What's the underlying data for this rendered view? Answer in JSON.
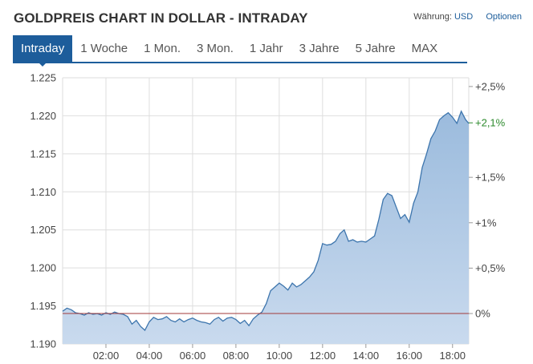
{
  "title": "GOLDPREIS CHART IN DOLLAR - INTRADAY",
  "currency": {
    "label": "Währung:",
    "value": "USD"
  },
  "options_label": "Optionen",
  "tabs": [
    {
      "label": "Intraday",
      "active": true
    },
    {
      "label": "1 Woche",
      "active": false
    },
    {
      "label": "1 Mon.",
      "active": false
    },
    {
      "label": "3 Mon.",
      "active": false
    },
    {
      "label": "1 Jahr",
      "active": false
    },
    {
      "label": "3 Jahre",
      "active": false
    },
    {
      "label": "5 Jahre",
      "active": false
    },
    {
      "label": "MAX",
      "active": false
    }
  ],
  "colors": {
    "line": "#3d75ad",
    "fill_top": "#9bbbdd",
    "fill_bottom": "#c9daee",
    "reference": "#a33a3a",
    "grid": "#dedede",
    "current_label": "#2e8b2e",
    "accent": "#1d5d9b"
  },
  "chart_data": {
    "type": "area",
    "title": "",
    "x_unit": "hours",
    "x_range": [
      0,
      18.75
    ],
    "x_ticks": [
      {
        "value": 2,
        "label": "02:00"
      },
      {
        "value": 4,
        "label": "04:00"
      },
      {
        "value": 6,
        "label": "06:00"
      },
      {
        "value": 8,
        "label": "08:00"
      },
      {
        "value": 10,
        "label": "10:00"
      },
      {
        "value": 12,
        "label": "12:00"
      },
      {
        "value": 14,
        "label": "14:00"
      },
      {
        "value": 16,
        "label": "16:00"
      },
      {
        "value": 18,
        "label": "18:00"
      }
    ],
    "y_range": [
      1190,
      1225
    ],
    "y_ticks": [
      {
        "value": 1190,
        "label": "1.190"
      },
      {
        "value": 1195,
        "label": "1.195"
      },
      {
        "value": 1200,
        "label": "1.200"
      },
      {
        "value": 1205,
        "label": "1.205"
      },
      {
        "value": 1210,
        "label": "1.210"
      },
      {
        "value": 1215,
        "label": "1.215"
      },
      {
        "value": 1220,
        "label": "1.220"
      },
      {
        "value": 1225,
        "label": "1.225"
      }
    ],
    "reference_value": 1194,
    "right_axis_ticks": [
      {
        "pct": 0,
        "label": "0%"
      },
      {
        "pct": 0.5,
        "label": "+0,5%"
      },
      {
        "pct": 1,
        "label": "+1%"
      },
      {
        "pct": 1.5,
        "label": "+1,5%"
      },
      {
        "pct": 2.5,
        "label": "+2,5%"
      }
    ],
    "current_label": {
      "pct": 2.1,
      "label": "+2,1%"
    },
    "grid": true,
    "series": [
      {
        "x": [
          0,
          0.2,
          0.4,
          0.6,
          0.8,
          1.0,
          1.2,
          1.4,
          1.6,
          1.8,
          2.0,
          2.2,
          2.4,
          2.6,
          2.8,
          3.0,
          3.2,
          3.4,
          3.6,
          3.8,
          4.0,
          4.2,
          4.4,
          4.6,
          4.8,
          5.0,
          5.2,
          5.4,
          5.6,
          5.8,
          6.0,
          6.2,
          6.4,
          6.6,
          6.8,
          7.0,
          7.2,
          7.4,
          7.6,
          7.8,
          8.0,
          8.2,
          8.4,
          8.6,
          8.8,
          9.0,
          9.2,
          9.4,
          9.6,
          9.8,
          10.0,
          10.2,
          10.4,
          10.6,
          10.8,
          11.0,
          11.2,
          11.4,
          11.6,
          11.8,
          12.0,
          12.2,
          12.4,
          12.6,
          12.8,
          13.0,
          13.2,
          13.4,
          13.6,
          13.8,
          14.0,
          14.2,
          14.4,
          14.6,
          14.8,
          15.0,
          15.2,
          15.4,
          15.6,
          15.8,
          16.0,
          16.2,
          16.4,
          16.6,
          16.8,
          17.0,
          17.2,
          17.4,
          17.6,
          17.8,
          18.0,
          18.2,
          18.4,
          18.6,
          18.75
        ],
        "values": [
          1194.3,
          1194.7,
          1194.5,
          1194.1,
          1194.0,
          1193.8,
          1194.1,
          1193.9,
          1194.0,
          1193.8,
          1194.1,
          1193.9,
          1194.2,
          1194.0,
          1193.9,
          1193.6,
          1192.6,
          1193.1,
          1192.3,
          1191.8,
          1192.9,
          1193.5,
          1193.2,
          1193.3,
          1193.6,
          1193.1,
          1192.9,
          1193.3,
          1192.9,
          1193.2,
          1193.4,
          1193.1,
          1192.9,
          1192.8,
          1192.6,
          1193.2,
          1193.5,
          1193.0,
          1193.4,
          1193.5,
          1193.2,
          1192.7,
          1193.1,
          1192.4,
          1193.3,
          1193.8,
          1194.2,
          1195.3,
          1197.0,
          1197.5,
          1198.0,
          1197.6,
          1197.1,
          1198.0,
          1197.5,
          1197.8,
          1198.3,
          1198.8,
          1199.5,
          1201.0,
          1203.2,
          1203.0,
          1203.1,
          1203.5,
          1204.5,
          1205.0,
          1203.5,
          1203.7,
          1203.4,
          1203.5,
          1203.4,
          1203.8,
          1204.2,
          1206.4,
          1209.0,
          1209.8,
          1209.5,
          1208.0,
          1206.5,
          1207.0,
          1206.0,
          1208.5,
          1210.0,
          1213.2,
          1215.0,
          1217.0,
          1218.0,
          1219.5,
          1220.0,
          1220.4,
          1219.8,
          1219.0,
          1220.6,
          1219.5,
          1219.0
        ]
      }
    ]
  }
}
